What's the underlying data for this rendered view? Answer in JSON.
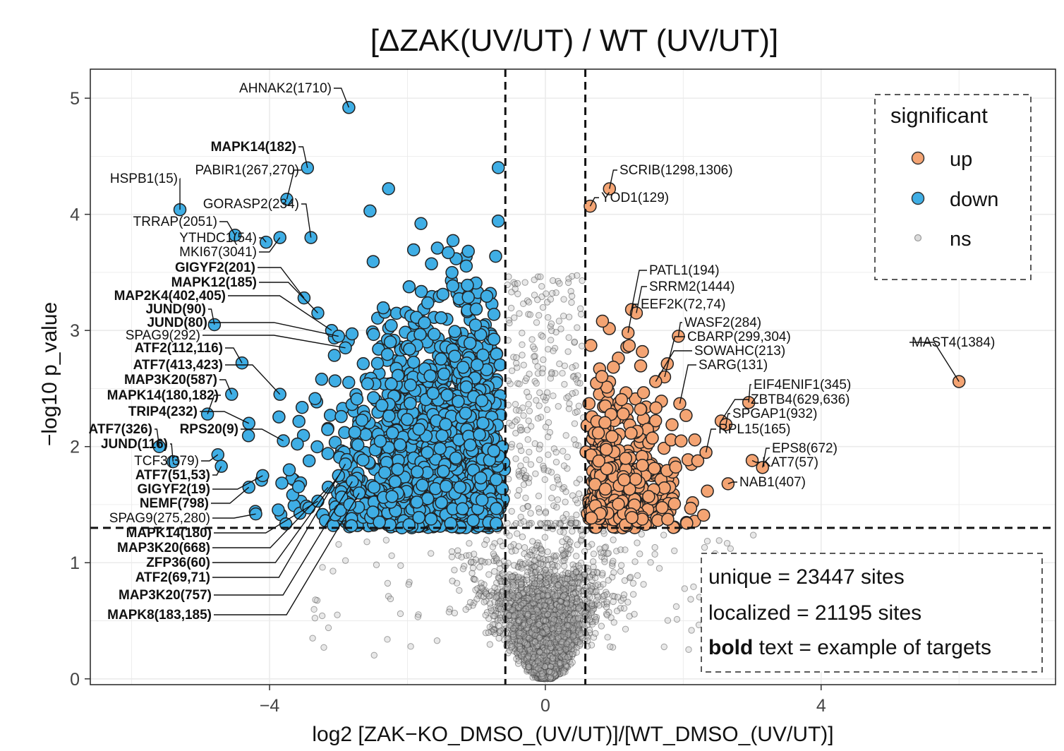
{
  "chart_data": {
    "type": "scatter",
    "title": "[ΔZAK(UV/UT) / WT (UV/UT)]",
    "xlabel": "log2 [ZAK−KO_DMSO_(UV/UT)]/[WT_DMSO_(UV/UT)]",
    "ylabel": "−log10 p_value",
    "xlim": [
      -6.6,
      7.4
    ],
    "ylim": [
      -0.05,
      5.25
    ],
    "x_ticks": [
      -4,
      0,
      4
    ],
    "x_tick_labels": [
      "−4",
      "0",
      "4"
    ],
    "y_ticks": [
      0,
      1,
      2,
      3,
      4,
      5
    ],
    "y_tick_labels": [
      "0",
      "1",
      "2",
      "3",
      "4",
      "5"
    ],
    "grid": true,
    "thresholds": {
      "x": [
        -0.58,
        0.58
      ],
      "y": 1.3
    },
    "legend": {
      "title": "significant",
      "position": "top-right",
      "entries": [
        {
          "label": "up",
          "color": "#F4A473"
        },
        {
          "label": "down",
          "color": "#3FAEE5"
        },
        {
          "label": "ns",
          "color": "#b8b8b8"
        }
      ]
    },
    "colors": {
      "up": "#F4A473",
      "down": "#3FAEE5",
      "ns": "#8c8c8c"
    },
    "annotation_box": {
      "lines": [
        {
          "bold": "",
          "text": "unique = 23447 sites"
        },
        {
          "bold": "",
          "text": "localized = 21195 sites"
        },
        {
          "bold": "bold",
          "text": " text = example of targets"
        }
      ]
    },
    "labeled_points": [
      {
        "label": "AHNAK2(1710)",
        "x": -2.85,
        "y": 4.92,
        "group": "down",
        "bold": false
      },
      {
        "label": "MAPK14(182)",
        "x": -3.45,
        "y": 4.4,
        "group": "down",
        "bold": true
      },
      {
        "label": "PABIR1(267,270)",
        "x": -3.75,
        "y": 4.13,
        "group": "down",
        "bold": false
      },
      {
        "label": "HSPB1(15)",
        "x": -5.3,
        "y": 4.04,
        "group": "down",
        "bold": false
      },
      {
        "label": "GORASP2(234)",
        "x": -3.4,
        "y": 3.8,
        "group": "down",
        "bold": false
      },
      {
        "label": "TRRAP(2051)",
        "x": -4.5,
        "y": 3.82,
        "group": "down",
        "bold": false
      },
      {
        "label": "YTHDC1(54)",
        "x": -4.05,
        "y": 3.76,
        "group": "down",
        "bold": false
      },
      {
        "label": "MKI67(3041)",
        "x": -3.85,
        "y": 3.8,
        "group": "down",
        "bold": false
      },
      {
        "label": "GIGYF2(201)",
        "x": -3.5,
        "y": 3.28,
        "group": "down",
        "bold": true
      },
      {
        "label": "MAPK12(185)",
        "x": -3.3,
        "y": 3.15,
        "group": "down",
        "bold": true
      },
      {
        "label": "MAP2K4(402,405)",
        "x": -3.1,
        "y": 3.0,
        "group": "down",
        "bold": true
      },
      {
        "label": "JUND(90)",
        "x": -4.8,
        "y": 3.05,
        "group": "down",
        "bold": true
      },
      {
        "label": "JUND(80)",
        "x": -3.0,
        "y": 2.95,
        "group": "down",
        "bold": true
      },
      {
        "label": "SPAG9(292)",
        "x": -2.9,
        "y": 2.85,
        "group": "down",
        "bold": false
      },
      {
        "label": "ATF2(112,116)",
        "x": -4.4,
        "y": 2.72,
        "group": "down",
        "bold": true
      },
      {
        "label": "ATF7(413,423)",
        "x": -3.85,
        "y": 2.45,
        "group": "down",
        "bold": true
      },
      {
        "label": "MAP3K20(587)",
        "x": -4.55,
        "y": 2.45,
        "group": "down",
        "bold": true
      },
      {
        "label": "MAPK14(180,182)",
        "x": -4.9,
        "y": 2.28,
        "group": "down",
        "bold": true
      },
      {
        "label": "TRIP4(232)",
        "x": -4.3,
        "y": 2.2,
        "group": "down",
        "bold": true
      },
      {
        "label": "ATF7(326)",
        "x": -5.6,
        "y": 2.0,
        "group": "down",
        "bold": true
      },
      {
        "label": "RPS20(9)",
        "x": -3.8,
        "y": 2.05,
        "group": "down",
        "bold": true
      },
      {
        "label": "JUND(116)",
        "x": -5.4,
        "y": 1.87,
        "group": "down",
        "bold": true
      },
      {
        "label": "TCF3(379)",
        "x": -4.75,
        "y": 1.93,
        "group": "down",
        "bold": false
      },
      {
        "label": "ATF7(51,53)",
        "x": -4.7,
        "y": 1.83,
        "group": "down",
        "bold": true
      },
      {
        "label": "GIGYF2(19)",
        "x": -4.1,
        "y": 1.75,
        "group": "down",
        "bold": true
      },
      {
        "label": "NEMF(798)",
        "x": -4.3,
        "y": 1.65,
        "group": "down",
        "bold": true
      },
      {
        "label": "SPAG9(275,280)",
        "x": -4.2,
        "y": 1.42,
        "group": "down",
        "bold": false
      },
      {
        "label": "MAPK14(180)",
        "x": -3.3,
        "y": 1.53,
        "group": "down",
        "bold": true
      },
      {
        "label": "MAP3K20(668)",
        "x": -3.15,
        "y": 1.65,
        "group": "down",
        "bold": true
      },
      {
        "label": "ZFP36(60)",
        "x": -3.0,
        "y": 1.75,
        "group": "down",
        "bold": true
      },
      {
        "label": "ATF2(69,71)",
        "x": -2.9,
        "y": 1.85,
        "group": "down",
        "bold": true
      },
      {
        "label": "MAP3K20(757)",
        "x": -2.8,
        "y": 1.7,
        "group": "down",
        "bold": true
      },
      {
        "label": "MAPK8(183,185)",
        "x": -2.7,
        "y": 1.6,
        "group": "down",
        "bold": true
      },
      {
        "label": "SCRIB(1298,1306)",
        "x": 0.93,
        "y": 4.22,
        "group": "up",
        "bold": false
      },
      {
        "label": "YOD1(129)",
        "x": 0.65,
        "y": 4.07,
        "group": "up",
        "bold": false
      },
      {
        "label": "PATL1(194)",
        "x": 1.25,
        "y": 3.18,
        "group": "up",
        "bold": false
      },
      {
        "label": "SRRM2(1444)",
        "x": 1.32,
        "y": 3.15,
        "group": "up",
        "bold": false
      },
      {
        "label": "EEF2K(72,74)",
        "x": 1.2,
        "y": 2.98,
        "group": "up",
        "bold": false
      },
      {
        "label": "WASF2(284)",
        "x": 1.93,
        "y": 2.95,
        "group": "up",
        "bold": false
      },
      {
        "label": "CBARP(299,304)",
        "x": 1.73,
        "y": 2.6,
        "group": "up",
        "bold": false
      },
      {
        "label": "SOWAHC(213)",
        "x": 1.6,
        "y": 2.56,
        "group": "up",
        "bold": false
      },
      {
        "label": "SARG(131)",
        "x": 1.95,
        "y": 2.37,
        "group": "up",
        "bold": false
      },
      {
        "label": "MAST4(1384)",
        "x": 6.0,
        "y": 2.56,
        "group": "up",
        "bold": false
      },
      {
        "label": "EIF4ENIF1(345)",
        "x": 2.95,
        "y": 2.38,
        "group": "up",
        "bold": false
      },
      {
        "label": "ZBTB4(629,636)",
        "x": 2.55,
        "y": 2.22,
        "group": "up",
        "bold": false
      },
      {
        "label": "SPGAP1(932)",
        "x": 2.62,
        "y": 2.19,
        "group": "up",
        "bold": false
      },
      {
        "label": "RPL15(165)",
        "x": 2.33,
        "y": 1.95,
        "group": "up",
        "bold": false
      },
      {
        "label": "EPS8(672)",
        "x": 3.15,
        "y": 1.82,
        "group": "up",
        "bold": false
      },
      {
        "label": "KAT7(57)",
        "x": 3.0,
        "y": 1.88,
        "group": "up",
        "bold": false
      },
      {
        "label": "NAB1(407)",
        "x": 2.65,
        "y": 1.68,
        "group": "up",
        "bold": false
      }
    ]
  }
}
